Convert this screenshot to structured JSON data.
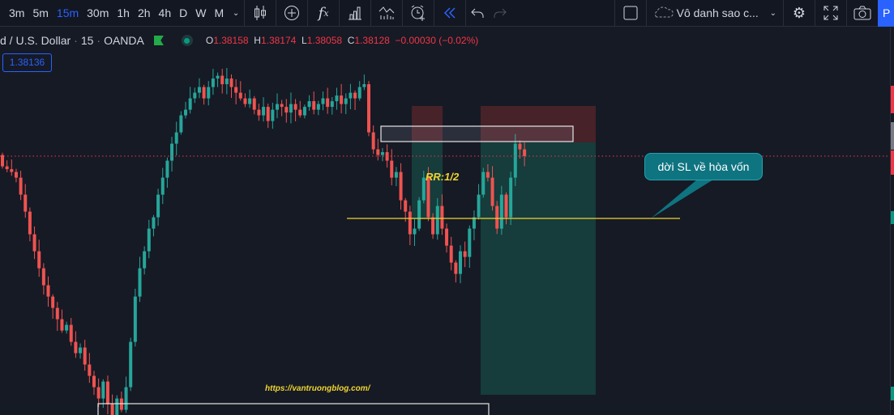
{
  "toolbar": {
    "timeframes": [
      "3m",
      "5m",
      "15m",
      "30m",
      "1h",
      "2h",
      "4h",
      "D",
      "W",
      "M"
    ],
    "active_timeframe": "15m",
    "layout_name": "Vô danh sao c...",
    "publish_label": "P"
  },
  "legend": {
    "symbol": "d / U.S. Dollar",
    "interval": "15",
    "exchange": "OANDA",
    "o_label": "O",
    "o": "1.38158",
    "h_label": "H",
    "h": "1.38174",
    "l_label": "L",
    "l": "1.38058",
    "c_label": "C",
    "c": "1.38128",
    "change": "−0.00030 (−0.02%)"
  },
  "price_box": "1.38136",
  "annotations": {
    "rr": "RR:1/2",
    "callout": "dời SL về hòa vốn",
    "watermark": "https://vantruongblog.com/"
  },
  "colors": {
    "up": "#26a69a",
    "down": "#ef5350",
    "accent": "#2962ff",
    "line": "#f0d430"
  },
  "chart_data": {
    "type": "candlestick",
    "last_price": 1.38128,
    "closes": [
      1.3811,
      1.38105,
      1.381,
      1.3809,
      1.3806,
      1.3803,
      1.3799,
      1.3796,
      1.3793,
      1.379,
      1.3788,
      1.3786,
      1.3784,
      1.3782,
      1.3783,
      1.378,
      1.3778,
      1.3779,
      1.3776,
      1.3774,
      1.3772,
      1.377,
      1.3773,
      1.3769,
      1.3767,
      1.377,
      1.3768,
      1.3772,
      1.378,
      1.3788,
      1.3793,
      1.3796,
      1.38,
      1.3802,
      1.3806,
      1.3809,
      1.3812,
      1.3815,
      1.3817,
      1.382,
      1.3821,
      1.3823,
      1.3824,
      1.3825,
      1.3823,
      1.3825,
      1.38265,
      1.3827,
      1.38255,
      1.38265,
      1.3825,
      1.3824,
      1.3823,
      1.3822,
      1.3823,
      1.3821,
      1.382,
      1.38215,
      1.3819,
      1.3821,
      1.3822,
      1.38215,
      1.38205,
      1.3822,
      1.3821,
      1.382,
      1.38215,
      1.38225,
      1.3821,
      1.3822,
      1.3823,
      1.38215,
      1.38225,
      1.38235,
      1.3822,
      1.3823,
      1.3824,
      1.3823,
      1.3825,
      1.38255,
      1.3817,
      1.3814,
      1.3813,
      1.38135,
      1.3812,
      1.3809,
      1.381,
      1.3805,
      1.3803,
      1.3799,
      1.38,
      1.3805,
      1.3809,
      1.3802,
      1.3799,
      1.3804,
      1.38,
      1.3797,
      1.3794,
      1.3792,
      1.3796,
      1.3795,
      1.38,
      1.3802,
      1.3806,
      1.381,
      1.3809,
      1.3804,
      1.38,
      1.3806,
      1.3802,
      1.3809,
      1.3815,
      1.3814,
      1.38128
    ]
  }
}
